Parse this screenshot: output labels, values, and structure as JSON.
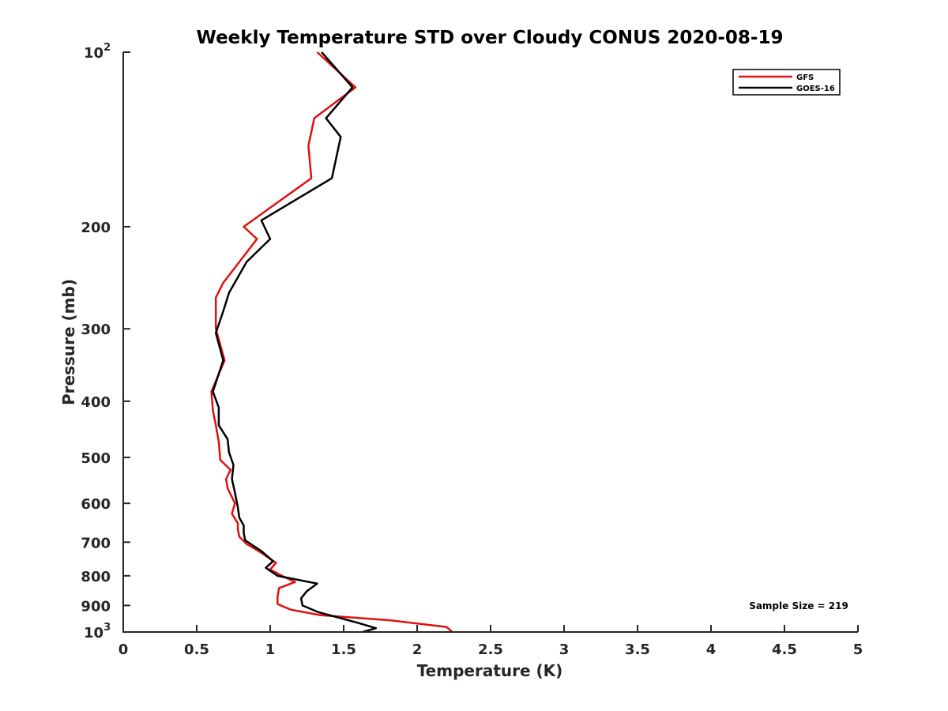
{
  "chart_data": {
    "type": "line",
    "title": "Weekly Temperature STD over Cloudy CONUS 2020-08-19",
    "xlabel": "Temperature (K)",
    "ylabel": "Pressure (mb)",
    "xlim": [
      0,
      5
    ],
    "ylim": [
      100,
      1000
    ],
    "y_scale": "log",
    "y_reversed": true,
    "grid": false,
    "legend_position": "top-right",
    "x_ticks": [
      "0",
      "0.5",
      "1",
      "1.5",
      "2",
      "2.5",
      "3",
      "3.5",
      "4",
      "4.5",
      "5"
    ],
    "y_ticks": [
      {
        "value": 100,
        "label": "10",
        "exp": "2"
      },
      {
        "value": 200,
        "label": "200"
      },
      {
        "value": 300,
        "label": "300"
      },
      {
        "value": 400,
        "label": "400"
      },
      {
        "value": 500,
        "label": "500"
      },
      {
        "value": 600,
        "label": "600"
      },
      {
        "value": 700,
        "label": "700"
      },
      {
        "value": 800,
        "label": "800"
      },
      {
        "value": 900,
        "label": "900"
      },
      {
        "value": 1000,
        "label": "10",
        "exp": "3"
      }
    ],
    "series": [
      {
        "name": "GFS",
        "color": "#e01010",
        "points": [
          [
            1.32,
            100
          ],
          [
            1.58,
            115
          ],
          [
            1.3,
            130
          ],
          [
            1.26,
            145
          ],
          [
            1.28,
            165
          ],
          [
            0.82,
            200
          ],
          [
            0.91,
            210
          ],
          [
            0.68,
            250
          ],
          [
            0.63,
            265
          ],
          [
            0.63,
            300
          ],
          [
            0.69,
            340
          ],
          [
            0.6,
            385
          ],
          [
            0.61,
            415
          ],
          [
            0.63,
            440
          ],
          [
            0.65,
            470
          ],
          [
            0.66,
            505
          ],
          [
            0.73,
            525
          ],
          [
            0.7,
            545
          ],
          [
            0.71,
            565
          ],
          [
            0.76,
            600
          ],
          [
            0.74,
            625
          ],
          [
            0.78,
            650
          ],
          [
            0.78,
            665
          ],
          [
            0.79,
            685
          ],
          [
            0.84,
            705
          ],
          [
            0.94,
            730
          ],
          [
            1.04,
            760
          ],
          [
            1.0,
            780
          ],
          [
            1.08,
            800
          ],
          [
            1.17,
            820
          ],
          [
            1.06,
            840
          ],
          [
            1.05,
            870
          ],
          [
            1.05,
            895
          ],
          [
            1.14,
            915
          ],
          [
            1.34,
            935
          ],
          [
            1.82,
            955
          ],
          [
            2.2,
            980
          ],
          [
            2.24,
            1000
          ]
        ]
      },
      {
        "name": "GOES-16",
        "color": "#000000",
        "points": [
          [
            1.35,
            100
          ],
          [
            1.56,
            115
          ],
          [
            1.38,
            130
          ],
          [
            1.48,
            140
          ],
          [
            1.42,
            165
          ],
          [
            0.94,
            195
          ],
          [
            1.0,
            210
          ],
          [
            0.84,
            230
          ],
          [
            0.72,
            260
          ],
          [
            0.68,
            280
          ],
          [
            0.63,
            305
          ],
          [
            0.68,
            340
          ],
          [
            0.61,
            385
          ],
          [
            0.65,
            410
          ],
          [
            0.65,
            440
          ],
          [
            0.71,
            465
          ],
          [
            0.72,
            490
          ],
          [
            0.75,
            515
          ],
          [
            0.74,
            545
          ],
          [
            0.76,
            575
          ],
          [
            0.78,
            610
          ],
          [
            0.79,
            635
          ],
          [
            0.82,
            655
          ],
          [
            0.82,
            675
          ],
          [
            0.83,
            695
          ],
          [
            0.94,
            725
          ],
          [
            1.02,
            755
          ],
          [
            0.97,
            775
          ],
          [
            1.05,
            800
          ],
          [
            1.32,
            825
          ],
          [
            1.25,
            850
          ],
          [
            1.21,
            875
          ],
          [
            1.22,
            900
          ],
          [
            1.33,
            925
          ],
          [
            1.47,
            945
          ],
          [
            1.6,
            965
          ],
          [
            1.72,
            985
          ],
          [
            1.63,
            1000
          ]
        ]
      }
    ],
    "annotation": "Sample Size = 219"
  }
}
